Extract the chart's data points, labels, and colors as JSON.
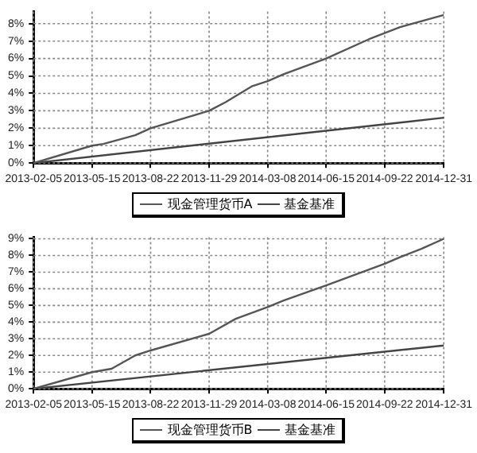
{
  "chart_data": [
    {
      "type": "line",
      "x": [
        "2013-02-05",
        "2013-05-15",
        "2013-06-03",
        "2013-07-27",
        "2013-08-22",
        "2013-11-29",
        "2013-12-27",
        "2014-02-09",
        "2014-03-08",
        "2014-04-04",
        "2014-06-15",
        "2014-08-26",
        "2014-10-18",
        "2014-12-31"
      ],
      "series": [
        {
          "name": "现金管理货币A",
          "color": "#555555",
          "values": [
            0,
            1.0,
            1.1,
            1.6,
            2.0,
            3.0,
            3.5,
            4.4,
            4.7,
            5.1,
            6.0,
            7.1,
            7.8,
            8.5
          ]
        },
        {
          "name": "基金基准",
          "color": "#444444",
          "x": [
            "2013-02-05",
            "2014-12-31"
          ],
          "values": [
            0,
            2.6
          ]
        }
      ],
      "xlim": [
        "2013-02-05",
        "2014-12-31"
      ],
      "xticks": [
        "2013-02-05",
        "2013-05-15",
        "2013-08-22",
        "2013-11-29",
        "2014-03-08",
        "2014-06-15",
        "2014-09-22",
        "2014-12-31"
      ],
      "ylim": [
        0,
        8.7
      ],
      "yticks": [
        {
          "value": 0,
          "label": "0%"
        },
        {
          "value": 1,
          "label": "1%"
        },
        {
          "value": 2,
          "label": "2%"
        },
        {
          "value": 3,
          "label": "3%"
        },
        {
          "value": 4,
          "label": "4%"
        },
        {
          "value": 5,
          "label": "5%"
        },
        {
          "value": 6,
          "label": "6%"
        },
        {
          "value": 7,
          "label": "7%"
        },
        {
          "value": 8,
          "label": "8%"
        }
      ],
      "grid": true,
      "legend": "bottom",
      "marker": "none",
      "line_style": "solid"
    },
    {
      "type": "line",
      "x": [
        "2013-02-05",
        "2013-05-15",
        "2013-06-17",
        "2013-07-27",
        "2013-08-22",
        "2013-11-29",
        "2014-01-13",
        "2014-03-08",
        "2014-04-04",
        "2014-06-15",
        "2014-09-22",
        "2014-10-18",
        "2014-11-23",
        "2014-12-31"
      ],
      "series": [
        {
          "name": "现金管理货币B",
          "color": "#555555",
          "values": [
            0,
            1.0,
            1.2,
            2.0,
            2.3,
            3.3,
            4.2,
            4.9,
            5.3,
            6.2,
            7.5,
            7.9,
            8.4,
            9.0
          ]
        },
        {
          "name": "基金基准",
          "color": "#444444",
          "x": [
            "2013-02-05",
            "2014-12-31"
          ],
          "values": [
            0,
            2.6
          ]
        }
      ],
      "xlim": [
        "2013-02-05",
        "2014-12-31"
      ],
      "xticks": [
        "2013-02-05",
        "2013-05-15",
        "2013-08-22",
        "2013-11-29",
        "2014-03-08",
        "2014-06-15",
        "2014-09-22",
        "2014-12-31"
      ],
      "ylim": [
        0,
        9.1
      ],
      "yticks": [
        {
          "value": 0,
          "label": "0%"
        },
        {
          "value": 1,
          "label": "1%"
        },
        {
          "value": 2,
          "label": "2%"
        },
        {
          "value": 3,
          "label": "3%"
        },
        {
          "value": 4,
          "label": "4%"
        },
        {
          "value": 5,
          "label": "5%"
        },
        {
          "value": 6,
          "label": "6%"
        },
        {
          "value": 7,
          "label": "7%"
        },
        {
          "value": 8,
          "label": "8%"
        },
        {
          "value": 9,
          "label": "9%"
        }
      ],
      "grid": true,
      "legend": "bottom",
      "marker": "none",
      "line_style": "solid"
    }
  ]
}
